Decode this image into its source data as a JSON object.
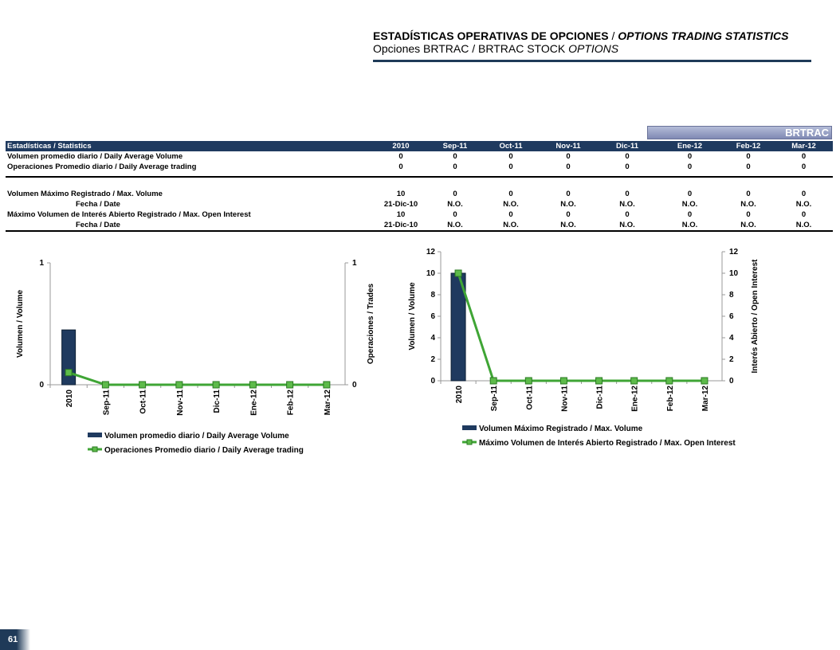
{
  "header": {
    "title_es": "ESTADÍSTICAS OPERATIVAS DE OPCIONES",
    "title_sep": " / ",
    "title_en": "OPTIONS TRADING STATISTICS",
    "subtitle_a": "Opciones BRTRAC / BRTRAC STOCK ",
    "subtitle_b": "OPTIONS"
  },
  "badge": "BRTRAC",
  "table": {
    "header_label": "Estadísticas / Statistics",
    "columns": [
      "2010",
      "Sep-11",
      "Oct-11",
      "Nov-11",
      "Dic-11",
      "Ene-12",
      "Feb-12",
      "Mar-12"
    ],
    "rows": [
      {
        "label": "Volumen promedio diario / Daily Average Volume",
        "values": [
          "0",
          "0",
          "0",
          "0",
          "0",
          "0",
          "0",
          "0"
        ]
      },
      {
        "label": "Operaciones Promedio diario / Daily Average trading",
        "values": [
          "0",
          "0",
          "0",
          "0",
          "0",
          "0",
          "0",
          "0"
        ]
      },
      {
        "label": "Volumen Máximo Registrado / Max. Volume",
        "values": [
          "10",
          "0",
          "0",
          "0",
          "0",
          "0",
          "0",
          "0"
        ]
      },
      {
        "label": "Fecha / Date",
        "values": [
          "21-Dic-10",
          "N.O.",
          "N.O.",
          "N.O.",
          "N.O.",
          "N.O.",
          "N.O.",
          "N.O."
        ]
      },
      {
        "label": "Máximo Volumen de Interés Abierto Registrado / Max. Open Interest",
        "values": [
          "10",
          "0",
          "0",
          "0",
          "0",
          "0",
          "0",
          "0"
        ]
      },
      {
        "label": "Fecha / Date",
        "values": [
          "21-Dic-10",
          "N.O.",
          "N.O.",
          "N.O.",
          "N.O.",
          "N.O.",
          "N.O.",
          "N.O."
        ]
      }
    ]
  },
  "page_number": "61",
  "colors": {
    "bar": "#1f3a5f",
    "line": "#3fa535",
    "header_bg": "#1f3a5f"
  },
  "chart_data": [
    {
      "type": "bar",
      "categories": [
        "2010",
        "Sep-11",
        "Oct-11",
        "Nov-11",
        "Dic-11",
        "Ene-12",
        "Feb-12",
        "Mar-12"
      ],
      "ylabel": "Volumen / Volume",
      "y2label": "Operaciones / Trades",
      "ylim": [
        0,
        1
      ],
      "y2lim": [
        0,
        1
      ],
      "yticks": [
        "0",
        "1"
      ],
      "y2ticks": [
        "0",
        "1"
      ],
      "series": [
        {
          "name": "Volumen promedio diario / Daily Average Volume",
          "type": "bar",
          "axis": "left",
          "values": [
            0.45,
            0,
            0,
            0,
            0,
            0,
            0,
            0
          ]
        },
        {
          "name": "Operaciones Promedio diario / Daily Average trading",
          "type": "line",
          "axis": "right",
          "values": [
            0.1,
            0,
            0,
            0,
            0,
            0,
            0,
            0
          ]
        }
      ],
      "legend": "bottom"
    },
    {
      "type": "bar",
      "categories": [
        "2010",
        "Sep-11",
        "Oct-11",
        "Nov-11",
        "Dic-11",
        "Ene-12",
        "Feb-12",
        "Mar-12"
      ],
      "ylabel": "Volumen / Volume",
      "y2label": "Interés Abierto / Open Interest",
      "ylim": [
        0,
        12
      ],
      "y2lim": [
        0,
        12
      ],
      "yticks": [
        "0",
        "2",
        "4",
        "6",
        "8",
        "10",
        "12"
      ],
      "y2ticks": [
        "0",
        "2",
        "4",
        "6",
        "8",
        "10",
        "12"
      ],
      "series": [
        {
          "name": "Volumen Máximo Registrado  / Max. Volume",
          "type": "bar",
          "axis": "left",
          "values": [
            10,
            0,
            0,
            0,
            0,
            0,
            0,
            0
          ]
        },
        {
          "name": "Máximo Volumen de Interés Abierto Registrado  / Max. Open Interest",
          "type": "line",
          "axis": "right",
          "values": [
            10,
            0,
            0,
            0,
            0,
            0,
            0,
            0
          ]
        }
      ],
      "legend": "bottom"
    }
  ]
}
